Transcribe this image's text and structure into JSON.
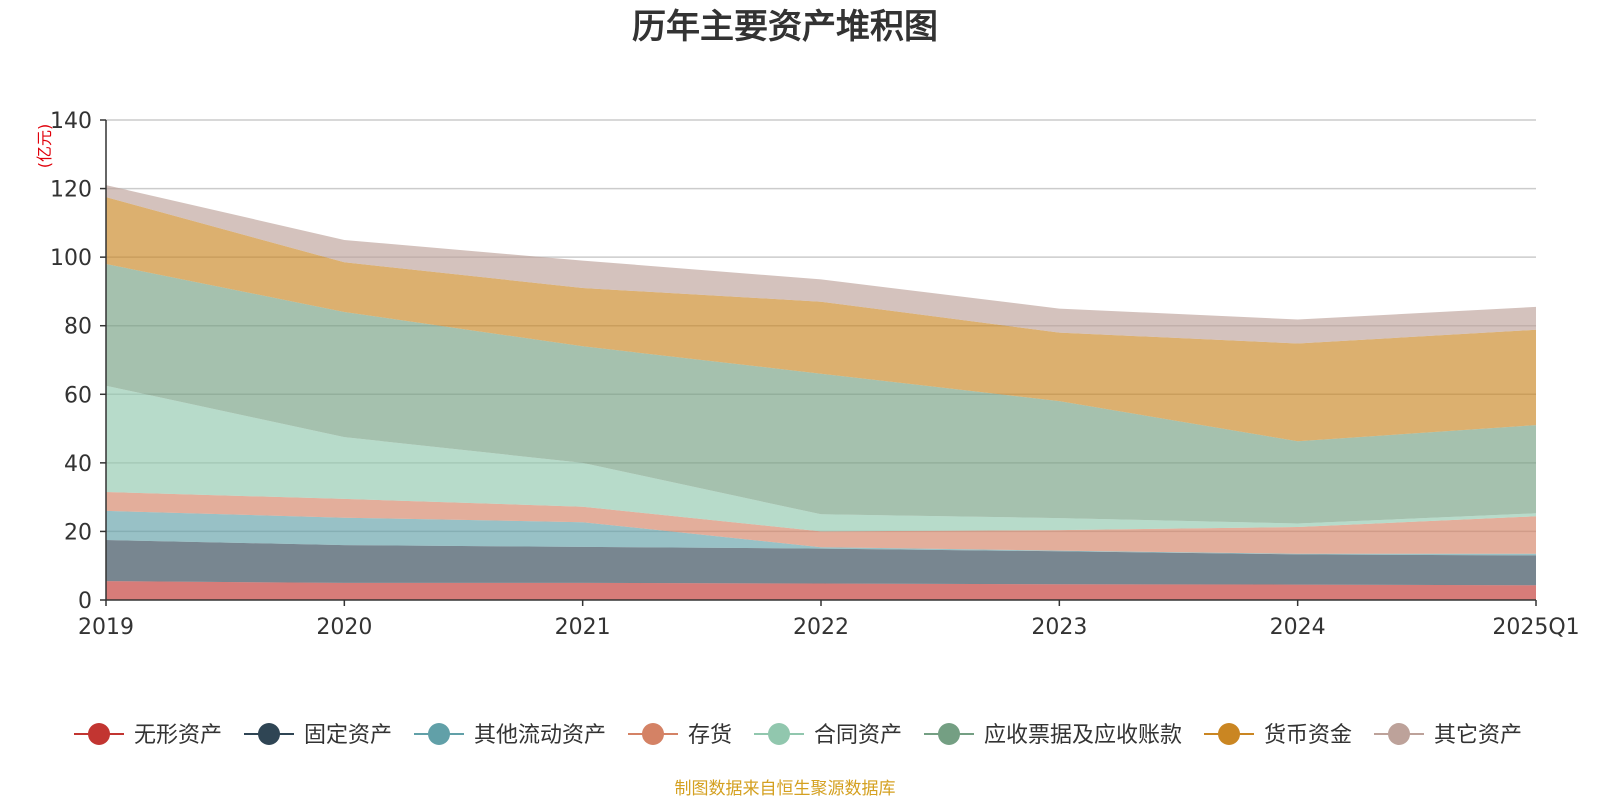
{
  "chart_data": {
    "type": "area",
    "stacked": true,
    "title": "历年主要资产堆积图",
    "unit_label": "(亿元)",
    "xlabel": "",
    "ylabel": "(亿元)",
    "ylim": [
      0,
      140
    ],
    "y_ticks": [
      0,
      20,
      40,
      60,
      80,
      100,
      120,
      140
    ],
    "y_tick_labels": [
      "0",
      "20",
      "40",
      "60",
      "80",
      "100",
      "120",
      "140"
    ],
    "grid": true,
    "legend_position": "bottom",
    "categories": [
      "2019",
      "2020",
      "2021",
      "2022",
      "2023",
      "2024",
      "2025Q1"
    ],
    "series": [
      {
        "name": "无形资产",
        "color": "#c23531",
        "values": [
          5.5,
          5.0,
          5.0,
          4.8,
          4.6,
          4.5,
          4.3
        ]
      },
      {
        "name": "固定资产",
        "color": "#2f4554",
        "values": [
          12.0,
          11.0,
          10.5,
          10.2,
          9.6,
          8.8,
          8.7
        ]
      },
      {
        "name": "其他流动资产",
        "color": "#61a0a8",
        "values": [
          8.5,
          8.0,
          7.2,
          0.4,
          0.2,
          0.2,
          0.5
        ]
      },
      {
        "name": "存货",
        "color": "#d48265",
        "values": [
          5.5,
          5.5,
          4.5,
          4.6,
          6.0,
          7.8,
          10.9
        ]
      },
      {
        "name": "合同资产",
        "color": "#91c7ae",
        "values": [
          31.0,
          18.0,
          12.8,
          5.0,
          3.5,
          1.0,
          0.9
        ]
      },
      {
        "name": "应收票据及应收账款",
        "color": "#749f83",
        "values": [
          35.5,
          36.5,
          34.0,
          41.0,
          34.1,
          24.0,
          25.7
        ]
      },
      {
        "name": "货币资金",
        "color": "#ca8622",
        "values": [
          19.5,
          14.5,
          17.0,
          21.0,
          20.0,
          28.5,
          27.8
        ]
      },
      {
        "name": "其它资产",
        "color": "#bda29a",
        "values": [
          3.5,
          6.5,
          8.0,
          6.5,
          7.0,
          7.0,
          6.7
        ]
      }
    ]
  },
  "source_note": "制图数据来自恒生聚源数据库"
}
